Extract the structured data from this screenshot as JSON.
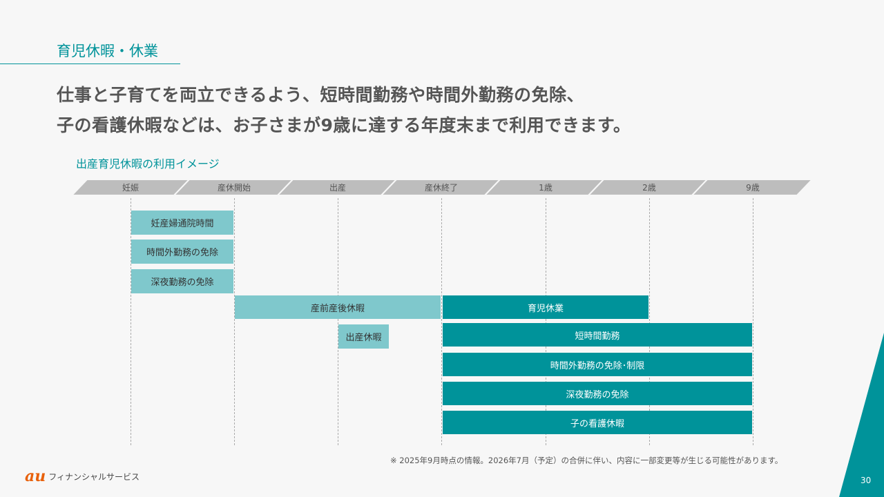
{
  "section_title": "育児休暇・休業",
  "headline": [
    "仕事と子育てを両立できるよう、短時間勤務や時間外勤務の免除、",
    "子の看護休暇などは、お子さまが9歳に達する年度末まで利用できます。"
  ],
  "diagram_title": "出産育児休暇の利用イメージ",
  "timeline": [
    "妊娠",
    "産休開始",
    "出産",
    "産休終了",
    "1歳",
    "2歳",
    "9歳"
  ],
  "bars": [
    {
      "label": "妊産婦通院時間",
      "style": "light"
    },
    {
      "label": "時間外勤務の免除",
      "style": "light"
    },
    {
      "label": "深夜勤務の免除",
      "style": "light"
    },
    {
      "label": "産前産後休暇",
      "style": "light"
    },
    {
      "label": "育児休業",
      "style": "dark"
    },
    {
      "label": "出産休暇",
      "style": "light"
    },
    {
      "label": "短時間勤務",
      "style": "dark"
    },
    {
      "label": "時間外勤務の免除･制限",
      "style": "dark"
    },
    {
      "label": "深夜勤務の免除",
      "style": "dark"
    },
    {
      "label": "子の看護休暇",
      "style": "dark"
    }
  ],
  "note": "※ 2025年9月時点の情報。2026年7月（予定）の合併に伴い、内容に一部変更等が生じる可能性があります。",
  "logo": {
    "mark": "au",
    "text": "フィナンシャルサービス"
  },
  "page_number": "30",
  "colors": {
    "accent": "#00939a",
    "light": "#7fc8cc",
    "banner": "#bdbdbd"
  }
}
